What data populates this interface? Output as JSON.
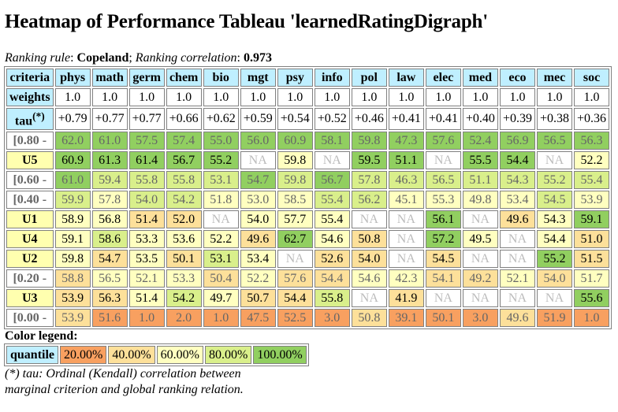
{
  "title": "Heatmap of Performance Tableau 'learnedRatingDigraph'",
  "ranking": {
    "rule_label": "Ranking rule",
    "rule_value": "Copeland",
    "corr_label": "Ranking correlation",
    "corr_value": "0.973"
  },
  "table": {
    "corner_label": "criteria",
    "weights_label": "weights",
    "tau_label": "tau",
    "tau_sup": "(*)",
    "criteria": [
      "phys",
      "math",
      "germ",
      "chem",
      "bio",
      "mgt",
      "psy",
      "info",
      "pol",
      "law",
      "elec",
      "med",
      "eco",
      "mec",
      "soc"
    ],
    "weights": [
      "1.0",
      "1.0",
      "1.0",
      "1.0",
      "1.0",
      "1.0",
      "1.0",
      "1.0",
      "1.0",
      "1.0",
      "1.0",
      "1.0",
      "1.0",
      "1.0",
      "1.0"
    ],
    "tau": [
      "+0.79",
      "+0.77",
      "+0.77",
      "+0.66",
      "+0.62",
      "+0.59",
      "+0.54",
      "+0.52",
      "+0.46",
      "+0.41",
      "+0.41",
      "+0.40",
      "+0.39",
      "+0.38",
      "+0.36"
    ],
    "rows": [
      {
        "label": "[0.80 -",
        "kind": "q",
        "cells": [
          [
            "62.0",
            5
          ],
          [
            "61.0",
            5
          ],
          [
            "57.5",
            5
          ],
          [
            "57.4",
            5
          ],
          [
            "55.0",
            5
          ],
          [
            "56.0",
            5
          ],
          [
            "60.9",
            5
          ],
          [
            "58.1",
            5
          ],
          [
            "59.8",
            5
          ],
          [
            "47.3",
            5
          ],
          [
            "57.6",
            5
          ],
          [
            "52.4",
            5
          ],
          [
            "56.9",
            5
          ],
          [
            "56.5",
            5
          ],
          [
            "56.3",
            5
          ]
        ]
      },
      {
        "label": "U5",
        "kind": "u",
        "cells": [
          [
            "60.9",
            5
          ],
          [
            "61.3",
            5
          ],
          [
            "61.4",
            5
          ],
          [
            "56.7",
            5
          ],
          [
            "55.2",
            5
          ],
          [
            "NA",
            0
          ],
          [
            "59.8",
            3
          ],
          [
            "NA",
            0
          ],
          [
            "59.5",
            5
          ],
          [
            "51.1",
            5
          ],
          [
            "NA",
            0
          ],
          [
            "55.5",
            5
          ],
          [
            "54.4",
            5
          ],
          [
            "NA",
            0
          ],
          [
            "52.2",
            3
          ]
        ]
      },
      {
        "label": "[0.60 -",
        "kind": "q",
        "cells": [
          [
            "61.0",
            5
          ],
          [
            "59.4",
            4
          ],
          [
            "55.8",
            4
          ],
          [
            "55.8",
            4
          ],
          [
            "53.1",
            4
          ],
          [
            "54.7",
            5
          ],
          [
            "59.8",
            4
          ],
          [
            "56.7",
            5
          ],
          [
            "57.8",
            4
          ],
          [
            "46.3",
            4
          ],
          [
            "56.5",
            4
          ],
          [
            "51.1",
            4
          ],
          [
            "54.3",
            4
          ],
          [
            "55.2",
            4
          ],
          [
            "55.4",
            4
          ]
        ]
      },
      {
        "label": "[0.40 -",
        "kind": "q",
        "cells": [
          [
            "59.9",
            4
          ],
          [
            "57.8",
            3
          ],
          [
            "54.0",
            4
          ],
          [
            "54.2",
            4
          ],
          [
            "51.8",
            3
          ],
          [
            "53.0",
            3
          ],
          [
            "58.5",
            3
          ],
          [
            "55.4",
            4
          ],
          [
            "56.2",
            4
          ],
          [
            "45.1",
            3
          ],
          [
            "55.3",
            3
          ],
          [
            "49.8",
            3
          ],
          [
            "53.4",
            3
          ],
          [
            "54.5",
            4
          ],
          [
            "53.9",
            3
          ]
        ]
      },
      {
        "label": "U1",
        "kind": "u",
        "cells": [
          [
            "58.9",
            3
          ],
          [
            "56.8",
            3
          ],
          [
            "51.4",
            2
          ],
          [
            "52.0",
            2
          ],
          [
            "NA",
            0
          ],
          [
            "54.0",
            3
          ],
          [
            "57.7",
            3
          ],
          [
            "55.4",
            3
          ],
          [
            "NA",
            0
          ],
          [
            "NA",
            0
          ],
          [
            "56.1",
            5
          ],
          [
            "NA",
            0
          ],
          [
            "49.6",
            2
          ],
          [
            "54.3",
            3
          ],
          [
            "59.1",
            5
          ]
        ]
      },
      {
        "label": "U4",
        "kind": "u",
        "cells": [
          [
            "59.1",
            3
          ],
          [
            "58.6",
            4
          ],
          [
            "53.3",
            3
          ],
          [
            "53.6",
            3
          ],
          [
            "52.2",
            3
          ],
          [
            "49.6",
            2
          ],
          [
            "62.7",
            5
          ],
          [
            "54.6",
            3
          ],
          [
            "50.8",
            2
          ],
          [
            "NA",
            0
          ],
          [
            "57.2",
            5
          ],
          [
            "49.5",
            3
          ],
          [
            "NA",
            0
          ],
          [
            "54.4",
            3
          ],
          [
            "51.0",
            2
          ]
        ]
      },
      {
        "label": "U2",
        "kind": "u",
        "cells": [
          [
            "59.8",
            3
          ],
          [
            "54.7",
            2
          ],
          [
            "53.5",
            3
          ],
          [
            "50.1",
            2
          ],
          [
            "53.1",
            4
          ],
          [
            "53.4",
            3
          ],
          [
            "NA",
            0
          ],
          [
            "52.6",
            2
          ],
          [
            "54.0",
            2
          ],
          [
            "NA",
            0
          ],
          [
            "54.5",
            2
          ],
          [
            "NA",
            0
          ],
          [
            "NA",
            0
          ],
          [
            "55.2",
            5
          ],
          [
            "51.5",
            2
          ]
        ]
      },
      {
        "label": "[0.20 -",
        "kind": "q",
        "cells": [
          [
            "58.8",
            2
          ],
          [
            "56.5",
            3
          ],
          [
            "52.1",
            3
          ],
          [
            "53.3",
            3
          ],
          [
            "50.4",
            2
          ],
          [
            "52.2",
            3
          ],
          [
            "57.6",
            2
          ],
          [
            "54.4",
            2
          ],
          [
            "54.6",
            3
          ],
          [
            "42.3",
            3
          ],
          [
            "54.1",
            2
          ],
          [
            "49.2",
            2
          ],
          [
            "52.1",
            3
          ],
          [
            "54.0",
            2
          ],
          [
            "51.7",
            3
          ]
        ]
      },
      {
        "label": "U3",
        "kind": "u",
        "cells": [
          [
            "53.9",
            2
          ],
          [
            "56.3",
            2
          ],
          [
            "51.4",
            3
          ],
          [
            "54.2",
            4
          ],
          [
            "49.7",
            3
          ],
          [
            "50.7",
            2
          ],
          [
            "54.4",
            2
          ],
          [
            "55.8",
            4
          ],
          [
            "NA",
            0
          ],
          [
            "41.9",
            2
          ],
          [
            "NA",
            0
          ],
          [
            "NA",
            0
          ],
          [
            "NA",
            0
          ],
          [
            "NA",
            0
          ],
          [
            "55.6",
            5
          ]
        ]
      },
      {
        "label": "[0.00 -",
        "kind": "q",
        "cells": [
          [
            "53.9",
            2
          ],
          [
            "51.6",
            1
          ],
          [
            "1.0",
            1
          ],
          [
            "2.0",
            1
          ],
          [
            "1.0",
            1
          ],
          [
            "47.5",
            1
          ],
          [
            "52.5",
            1
          ],
          [
            "3.0",
            1
          ],
          [
            "50.8",
            2
          ],
          [
            "39.1",
            1
          ],
          [
            "50.1",
            1
          ],
          [
            "3.0",
            1
          ],
          [
            "49.6",
            2
          ],
          [
            "51.9",
            1
          ],
          [
            "1.0",
            1
          ]
        ]
      }
    ]
  },
  "legend": {
    "title": "Color legend:",
    "label": "quantile",
    "items": [
      {
        "text": "20.00%",
        "color": "#f8a060"
      },
      {
        "text": "40.00%",
        "color": "#fde09a"
      },
      {
        "text": "60.00%",
        "color": "#ffffc0"
      },
      {
        "text": "80.00%",
        "color": "#d9ef8b"
      },
      {
        "text": "100.00%",
        "color": "#91cf60"
      }
    ]
  },
  "note_line1": "(*) tau: Ordinal (Kendall) correlation between",
  "note_line2": "marginal criterion and global ranking relation."
}
